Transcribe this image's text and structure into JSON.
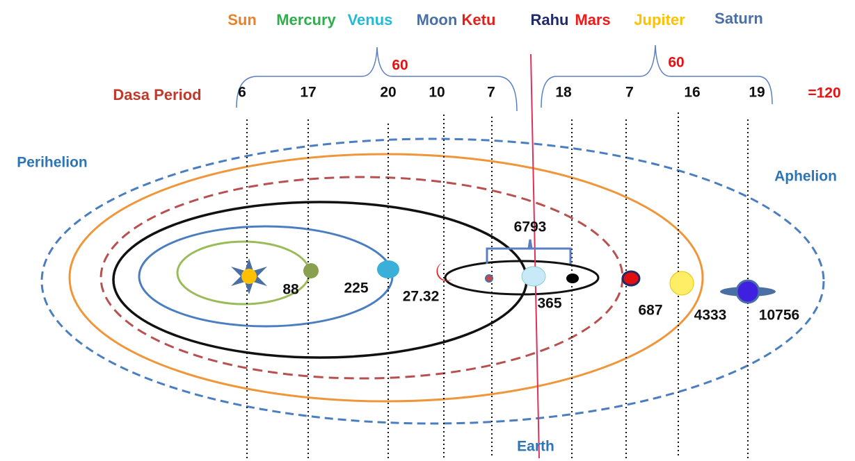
{
  "header": {
    "planets": [
      "Sun",
      "Mercury",
      "Venus",
      "Moon",
      "Ketu",
      "Rahu",
      "Mars",
      "Jupiter",
      "Saturn"
    ]
  },
  "dasa": {
    "label": "Dasa Period",
    "years": [
      6,
      17,
      20,
      10,
      7,
      18,
      7,
      16,
      19
    ],
    "group_sums": [
      60,
      60
    ],
    "total": "=120"
  },
  "labels": {
    "perihelion": "Perihelion",
    "aphelion": "Aphelion",
    "earth": "Earth"
  },
  "orbital_periods": {
    "mercury": 88,
    "venus": 225,
    "moon": 27.32,
    "earth": 365,
    "mars": 687,
    "jupiter": 4333,
    "saturn": 10756,
    "rahu_ketu": 6793
  }
}
